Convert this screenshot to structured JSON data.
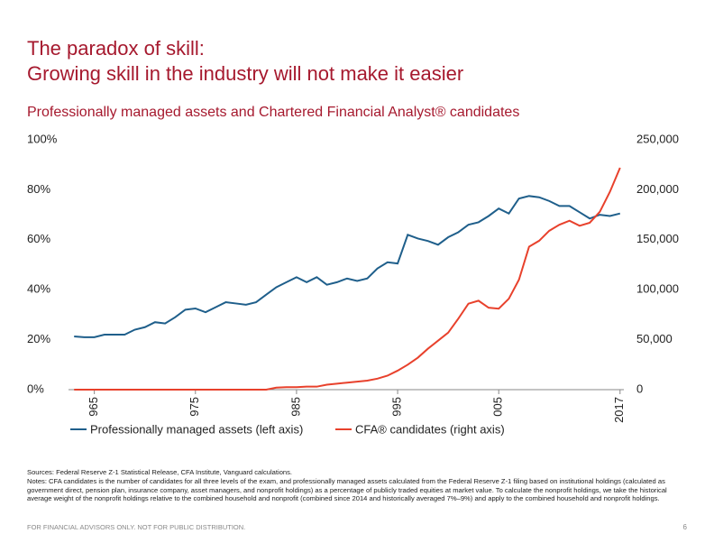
{
  "header": {
    "title_lines": [
      "The paradox of skill:",
      "Growing skill in the industry will not make it easier"
    ]
  },
  "chart_data": {
    "type": "line",
    "title": "Professionally managed assets and Chartered Financial Analyst® candidates",
    "x": [
      1963,
      1964,
      1965,
      1966,
      1967,
      1968,
      1969,
      1970,
      1971,
      1972,
      1973,
      1974,
      1975,
      1976,
      1977,
      1978,
      1979,
      1980,
      1981,
      1982,
      1983,
      1984,
      1985,
      1986,
      1987,
      1988,
      1989,
      1990,
      1991,
      1992,
      1993,
      1994,
      1995,
      1996,
      1997,
      1998,
      1999,
      2000,
      2001,
      2002,
      2003,
      2004,
      2005,
      2006,
      2007,
      2008,
      2009,
      2010,
      2011,
      2012,
      2013,
      2014,
      2015,
      2016,
      2017
    ],
    "xlim": [
      1962,
      2018
    ],
    "xticks": [
      {
        "value": 1965,
        "label": "965"
      },
      {
        "value": 1975,
        "label": "975"
      },
      {
        "value": 1985,
        "label": "985"
      },
      {
        "value": 1995,
        "label": "995"
      },
      {
        "value": 2005,
        "label": "005"
      },
      2017
    ],
    "ylim": [
      0,
      100
    ],
    "yticks": [
      {
        "value": 0,
        "label": "0%"
      },
      {
        "value": 20,
        "label": "20%"
      },
      {
        "value": 40,
        "label": "40%"
      },
      {
        "value": 60,
        "label": "60%"
      },
      {
        "value": 80,
        "label": "80%"
      },
      {
        "value": 100,
        "label": "100%"
      }
    ],
    "y2lim": [
      0,
      250000
    ],
    "y2ticks": [
      0,
      {
        "value": 50000,
        "label": "50,000"
      },
      {
        "value": 100000,
        "label": "100,000"
      },
      {
        "value": 150000,
        "label": "150,000"
      },
      {
        "value": 200000,
        "label": "200,000"
      },
      {
        "value": 250000,
        "label": "250,000"
      }
    ],
    "series": [
      {
        "name": "Professionally managed assets (left axis)",
        "color": "#1f5f8b",
        "values": [
          21.3,
          21,
          21,
          22,
          22,
          22,
          24,
          25,
          27,
          26.5,
          29,
          32,
          32.5,
          31,
          33,
          35,
          34.5,
          34,
          35,
          38,
          41,
          43,
          45,
          43,
          45,
          42,
          43,
          44.5,
          43.5,
          44.5,
          48.5,
          51,
          50.5,
          62,
          60.5,
          59.5,
          58,
          61,
          63,
          66,
          67,
          69.5,
          72.5,
          70.5,
          76.5,
          77.5,
          77,
          75.5,
          73.5,
          73.5,
          71,
          68.5,
          70,
          69.5,
          70.5
        ]
      },
      {
        "name": "CFA® candidates (right axis)",
        "color": "#e8412c",
        "axis": "y2",
        "values": [
          0,
          0,
          0,
          0,
          0,
          0,
          0,
          0,
          0,
          0,
          0,
          0,
          0,
          0,
          0,
          0,
          0,
          0,
          0,
          0,
          2000,
          2500,
          2500,
          3000,
          3000,
          5000,
          6000,
          7000,
          8000,
          9000,
          11000,
          14000,
          19000,
          25000,
          32000,
          41000,
          49000,
          57000,
          71000,
          86000,
          89000,
          82000,
          81000,
          91000,
          110000,
          143000,
          149000,
          159000,
          165000,
          169000,
          164000,
          167000,
          178000,
          198000,
          222000
        ]
      }
    ]
  },
  "notes": {
    "sources": "Sources: Federal Reserve Z-1 Statistical Release, CFA Institute, Vanguard calculations.",
    "text": "Notes: CFA candidates is the number of candidates for all three levels of the exam, and professionally managed assets calculated from the Federal Reserve Z-1 filing based on institutional holdings (calculated as government direct, pension plan, insurance company, asset managers, and nonprofit holdings) as a percentage of publicly traded equities at market value. To calculate the nonprofit holdings, we take the historical average weight of the nonprofit holdings relative to the combined household and nonprofit (combined since 2014 and historically averaged 7%–9%) and apply to the combined household and nonprofit holdings."
  },
  "footer": {
    "disclaimer": "FOR FINANCIAL ADVISORS ONLY. NOT FOR PUBLIC DISTRIBUTION.",
    "page": "6"
  }
}
